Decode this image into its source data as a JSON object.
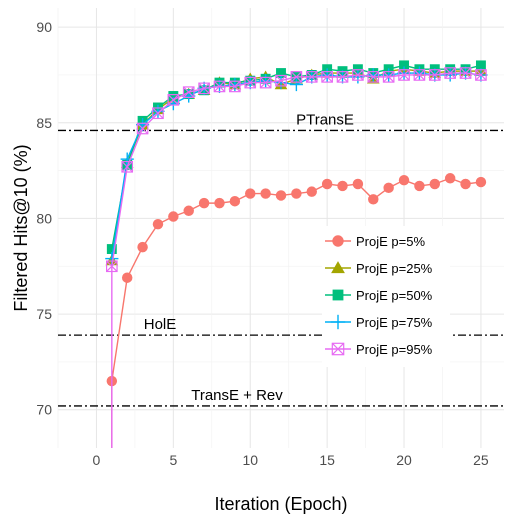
{
  "chart_data": {
    "type": "line",
    "title": "",
    "xlabel": "Iteration (Epoch)",
    "ylabel": "Filtered Hits@10 (%)",
    "xlim": [
      -2.5,
      26.5
    ],
    "ylim": [
      68,
      91
    ],
    "x_ticks": [
      0,
      5,
      10,
      15,
      20,
      25
    ],
    "y_ticks": [
      70,
      75,
      80,
      85,
      90
    ],
    "grid": true,
    "legend_position": "right-center",
    "reference_lines": [
      {
        "label": "PTransE",
        "y": 84.6
      },
      {
        "label": "HolE",
        "y": 73.9
      },
      {
        "label": "TransE + Rev",
        "y": 70.2
      }
    ],
    "x": [
      1,
      2,
      3,
      4,
      5,
      6,
      7,
      8,
      9,
      10,
      11,
      12,
      13,
      14,
      15,
      16,
      17,
      18,
      19,
      20,
      21,
      22,
      23,
      24,
      25
    ],
    "series": [
      {
        "name": "ProjE p=5%",
        "color": "#f8766d",
        "marker": "circle",
        "start": [
          1,
          67
        ],
        "values": [
          71.5,
          76.9,
          78.5,
          79.7,
          80.1,
          80.4,
          80.8,
          80.8,
          80.9,
          81.3,
          81.3,
          81.2,
          81.3,
          81.4,
          81.8,
          81.7,
          81.8,
          81.0,
          81.6,
          82.0,
          81.7,
          81.8,
          82.1,
          81.8,
          81.9
        ]
      },
      {
        "name": "ProjE p=25%",
        "color": "#a3a500",
        "marker": "triangle",
        "values": [
          77.8,
          82.9,
          84.9,
          85.7,
          86.3,
          86.5,
          86.7,
          87.1,
          87.0,
          87.3,
          87.4,
          87.0,
          87.3,
          87.5,
          87.6,
          87.6,
          87.6,
          87.3,
          87.7,
          87.8,
          87.7,
          87.6,
          87.7,
          87.7,
          87.7
        ]
      },
      {
        "name": "ProjE p=50%",
        "color": "#00bf7d",
        "marker": "square",
        "values": [
          78.4,
          82.8,
          85.1,
          85.8,
          86.4,
          86.5,
          86.7,
          87.1,
          87.1,
          87.2,
          87.3,
          87.6,
          87.4,
          87.5,
          87.8,
          87.7,
          87.8,
          87.6,
          87.8,
          88.0,
          87.8,
          87.8,
          87.8,
          87.8,
          88.0
        ]
      },
      {
        "name": "ProjE p=75%",
        "color": "#00b0f6",
        "marker": "plus",
        "values": [
          77.9,
          83.1,
          84.9,
          85.6,
          86.0,
          86.4,
          86.8,
          86.9,
          87.0,
          87.1,
          87.2,
          87.1,
          87.0,
          87.4,
          87.5,
          87.4,
          87.4,
          87.5,
          87.5,
          87.6,
          87.6,
          87.5,
          87.5,
          87.6,
          87.5
        ]
      },
      {
        "name": "ProjE p=95%",
        "color": "#e76bf3",
        "marker": "boxx",
        "start": [
          1,
          67
        ],
        "values": [
          77.5,
          82.7,
          84.7,
          85.5,
          86.2,
          86.6,
          86.8,
          86.9,
          86.9,
          87.1,
          87.1,
          87.2,
          87.4,
          87.4,
          87.4,
          87.4,
          87.5,
          87.4,
          87.4,
          87.5,
          87.5,
          87.5,
          87.6,
          87.6,
          87.5
        ]
      }
    ]
  }
}
